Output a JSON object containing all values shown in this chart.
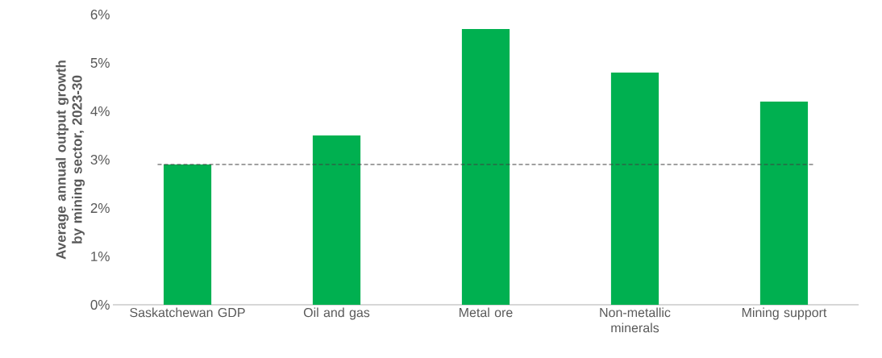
{
  "chart_data": {
    "type": "bar",
    "ylabel": "Average annual output growth by mining sector, 2023-30",
    "categories": [
      "Saskatchewan GDP",
      "Oil and gas",
      "Metal ore",
      "Non-metallic minerals",
      "Mining support"
    ],
    "values": [
      2.9,
      3.5,
      5.7,
      4.8,
      4.2
    ],
    "color": "#00b050",
    "ylim": [
      0,
      6
    ],
    "yticks": [
      {
        "value": 0,
        "label": "0%"
      },
      {
        "value": 1,
        "label": "1%"
      },
      {
        "value": 2,
        "label": "2%"
      },
      {
        "value": 3,
        "label": "3%"
      },
      {
        "value": 4,
        "label": "4%"
      },
      {
        "value": 5,
        "label": "5%"
      },
      {
        "value": 6,
        "label": "6%"
      }
    ],
    "ref_lines": [
      {
        "axis": "y",
        "value": 2.9,
        "color": "#404040",
        "line_style": "dashed"
      }
    ]
  }
}
